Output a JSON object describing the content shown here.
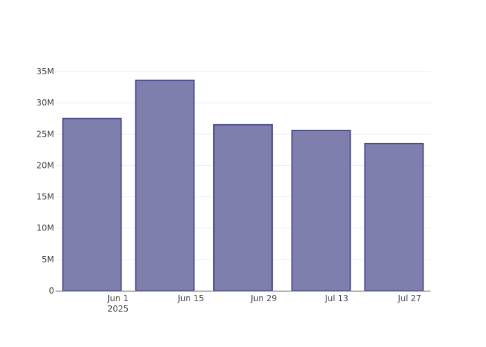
{
  "chart_data": {
    "type": "bar",
    "x": [
      "2025-05-27",
      "2025-06-10",
      "2025-06-25",
      "2025-07-10",
      "2025-07-24"
    ],
    "values": [
      27500000,
      33600000,
      26500000,
      25600000,
      23500000
    ],
    "ylim": [
      0,
      35000000
    ],
    "yticks": [
      0,
      5000000,
      10000000,
      15000000,
      20000000,
      25000000,
      30000000,
      35000000
    ],
    "ytick_labels": [
      "0",
      "5M",
      "10M",
      "15M",
      "20M",
      "25M",
      "30M",
      "35M"
    ],
    "xticks": [
      "2025-06-01",
      "2025-06-15",
      "2025-06-29",
      "2025-07-13",
      "2025-07-27"
    ],
    "xtick_labels": [
      "Jun 1",
      "Jun 15",
      "Jun 29",
      "Jul 13",
      "Jul 27"
    ],
    "xtick_sublabel": "2025",
    "grid": "horizontal",
    "colors": {
      "bar_fill": "#7f7fae",
      "bar_stroke": "#46468a"
    }
  }
}
